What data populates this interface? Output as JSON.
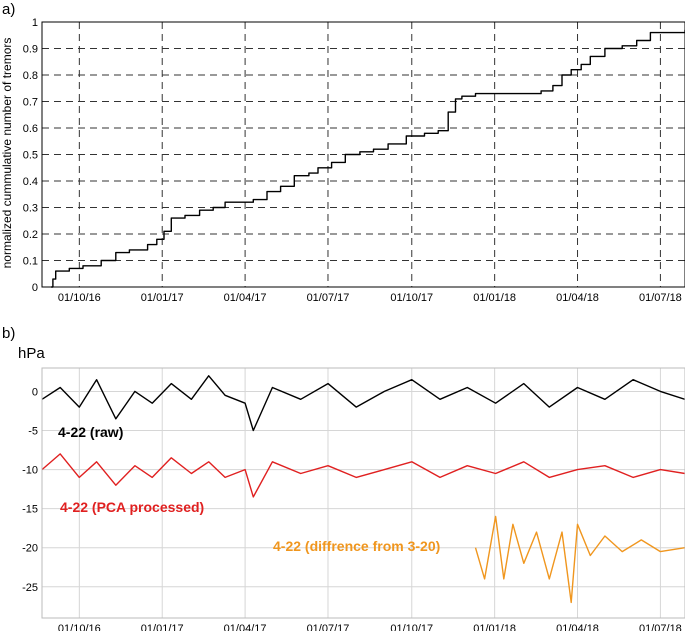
{
  "chart_data": [
    {
      "panel_label": "a)",
      "type": "line",
      "title": "",
      "xlabel": "",
      "ylabel": "normalized cummulative number of tremors",
      "x_tick_labels": [
        "01/10/16",
        "01/01/17",
        "01/04/17",
        "01/07/17",
        "01/10/17",
        "01/01/18",
        "01/04/18",
        "01/07/18"
      ],
      "y_tick_labels": [
        "0",
        "0.1",
        "0.2",
        "0.3",
        "0.4",
        "0.5",
        "0.6",
        "0.7",
        "0.8",
        "0.9",
        "1"
      ],
      "xlim": [
        "2016-08-21",
        "2018-07-28"
      ],
      "ylim": [
        0,
        1
      ],
      "grid": true,
      "series": [
        {
          "color": "#000000",
          "x": [
            "2016-08-31",
            "2016-09-02",
            "2016-09-05",
            "2016-09-20",
            "2016-10-05",
            "2016-10-25",
            "2016-11-10",
            "2016-11-25",
            "2016-12-15",
            "2016-12-25",
            "2017-01-02",
            "2017-01-10",
            "2017-01-25",
            "2017-02-10",
            "2017-02-25",
            "2017-03-10",
            "2017-03-25",
            "2017-04-10",
            "2017-04-25",
            "2017-05-10",
            "2017-05-25",
            "2017-06-10",
            "2017-06-20",
            "2017-07-05",
            "2017-07-20",
            "2017-08-05",
            "2017-08-20",
            "2017-09-05",
            "2017-09-25",
            "2017-10-15",
            "2017-10-30",
            "2017-11-10",
            "2017-11-18",
            "2017-11-25",
            "2017-12-10",
            "2017-12-25",
            "2018-01-10",
            "2018-02-01",
            "2018-02-20",
            "2018-03-05",
            "2018-03-15",
            "2018-03-25",
            "2018-04-05",
            "2018-04-15",
            "2018-05-01",
            "2018-05-20",
            "2018-06-05",
            "2018-06-20",
            "2018-07-28"
          ],
          "y": [
            0.0,
            0.03,
            0.06,
            0.07,
            0.08,
            0.1,
            0.13,
            0.14,
            0.16,
            0.18,
            0.21,
            0.26,
            0.27,
            0.29,
            0.3,
            0.32,
            0.32,
            0.33,
            0.36,
            0.38,
            0.42,
            0.43,
            0.45,
            0.47,
            0.5,
            0.51,
            0.52,
            0.54,
            0.57,
            0.58,
            0.59,
            0.66,
            0.71,
            0.72,
            0.73,
            0.73,
            0.73,
            0.73,
            0.74,
            0.76,
            0.8,
            0.82,
            0.84,
            0.87,
            0.9,
            0.91,
            0.93,
            0.96,
            0.97
          ]
        }
      ]
    },
    {
      "panel_label": "b)",
      "type": "line",
      "title": "",
      "xlabel": "",
      "ylabel": "hPa",
      "x_tick_labels": [
        "01/10/16",
        "01/01/17",
        "01/04/17",
        "01/07/17",
        "01/10/17",
        "01/01/18",
        "01/04/18",
        "01/07/18"
      ],
      "y_tick_labels": [
        "0",
        "-5",
        "-10",
        "-15",
        "-20",
        "-25"
      ],
      "xlim": [
        "2016-08-21",
        "2018-07-28"
      ],
      "ylim": [
        -29,
        3
      ],
      "grid": true,
      "series": [
        {
          "name": "4-22 (raw)",
          "color": "#000000",
          "x": [
            "2016-08-21",
            "2016-09-10",
            "2016-10-01",
            "2016-10-20",
            "2016-11-10",
            "2016-12-01",
            "2016-12-20",
            "2017-01-10",
            "2017-02-01",
            "2017-02-20",
            "2017-03-10",
            "2017-04-01",
            "2017-04-10",
            "2017-05-01",
            "2017-06-01",
            "2017-07-01",
            "2017-08-01",
            "2017-09-01",
            "2017-10-01",
            "2017-11-01",
            "2017-12-01",
            "2018-01-01",
            "2018-02-01",
            "2018-03-01",
            "2018-04-01",
            "2018-05-01",
            "2018-06-01",
            "2018-07-01",
            "2018-07-28"
          ],
          "y": [
            -1,
            0.5,
            -2,
            1.5,
            -3.5,
            0,
            -1.5,
            1,
            -1,
            2,
            -0.5,
            -1.5,
            -5,
            0.5,
            -1,
            1,
            -2,
            0,
            1.5,
            -1,
            0.5,
            -1.5,
            1,
            -2,
            0.5,
            -1,
            1.5,
            0,
            -1
          ]
        },
        {
          "name": "4-22 (PCA processed)",
          "color": "#e02020",
          "x": [
            "2016-08-21",
            "2016-09-10",
            "2016-10-01",
            "2016-10-20",
            "2016-11-10",
            "2016-12-01",
            "2016-12-20",
            "2017-01-10",
            "2017-02-01",
            "2017-02-20",
            "2017-03-10",
            "2017-04-01",
            "2017-04-10",
            "2017-05-01",
            "2017-06-01",
            "2017-07-01",
            "2017-08-01",
            "2017-09-01",
            "2017-10-01",
            "2017-11-01",
            "2017-12-01",
            "2018-01-01",
            "2018-02-01",
            "2018-03-01",
            "2018-04-01",
            "2018-05-01",
            "2018-06-01",
            "2018-07-01",
            "2018-07-28"
          ],
          "y": [
            -10,
            -8,
            -11,
            -9,
            -12,
            -9.5,
            -11,
            -8.5,
            -10.5,
            -9,
            -11,
            -10,
            -13.5,
            -9,
            -10.5,
            -9.5,
            -11,
            -10,
            -9,
            -11,
            -9.5,
            -10.5,
            -9,
            -11,
            -10,
            -9.5,
            -11,
            -10,
            -10.5
          ]
        },
        {
          "name": "4-22 (diffrence from 3-20)",
          "color": "#f0961e",
          "x": [
            "2017-12-10",
            "2017-12-20",
            "2018-01-01",
            "2018-01-10",
            "2018-01-20",
            "2018-02-01",
            "2018-02-15",
            "2018-03-01",
            "2018-03-15",
            "2018-03-25",
            "2018-04-01",
            "2018-04-15",
            "2018-05-01",
            "2018-05-20",
            "2018-06-10",
            "2018-07-01",
            "2018-07-28"
          ],
          "y": [
            -20,
            -24,
            -16,
            -24,
            -17,
            -22,
            -18,
            -24,
            -18,
            -27,
            -17,
            -21,
            -18.5,
            -20.5,
            -19,
            -20.5,
            -20
          ]
        }
      ]
    }
  ]
}
